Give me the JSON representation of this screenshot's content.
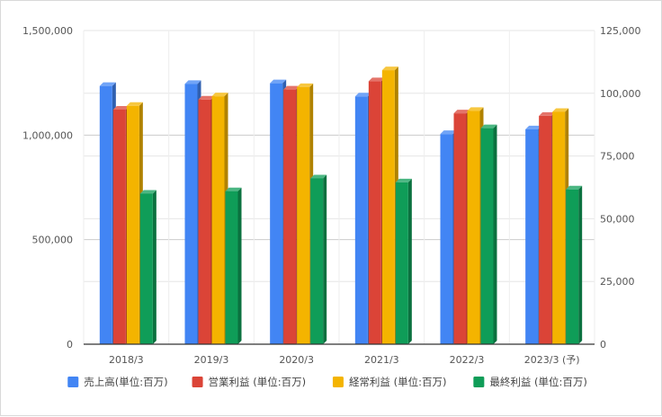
{
  "chart_data": {
    "type": "bar",
    "categories": [
      "2018/3",
      "2019/3",
      "2020/3",
      "2021/3",
      "2022/3",
      "2023/3 (予)"
    ],
    "series": [
      {
        "name": "売上高(単位:百万)",
        "axis": "left",
        "color": "#4285f4",
        "values": [
          1235000,
          1245000,
          1248000,
          1185000,
          1005000,
          1028000
        ]
      },
      {
        "name": "営業利益 (単位:百万)",
        "axis": "right",
        "color": "#db4437",
        "values": [
          93500,
          97500,
          101500,
          104800,
          92000,
          91000
        ]
      },
      {
        "name": "経常利益 (単位:百万)",
        "axis": "right",
        "color": "#f4b400",
        "values": [
          95000,
          98800,
          102500,
          109200,
          93000,
          92600
        ]
      },
      {
        "name": "最終利益 (単位:百万)",
        "axis": "right",
        "color": "#0f9d58",
        "values": [
          60000,
          61000,
          66100,
          64500,
          86100,
          61700
        ]
      }
    ],
    "y_left": {
      "min": 0,
      "max": 1500000,
      "ticks": [
        "0",
        "500,000",
        "1,000,000",
        "1,500,000"
      ],
      "tick_values": [
        0,
        500000,
        1000000,
        1500000
      ]
    },
    "y_right": {
      "min": 0,
      "max": 125000,
      "ticks": [
        "0",
        "25,000",
        "50,000",
        "75,000",
        "100,000",
        "125,000"
      ],
      "tick_values": [
        0,
        25000,
        50000,
        75000,
        100000,
        125000
      ]
    },
    "grid": true,
    "legend_position": "bottom",
    "style": "3d-bars"
  }
}
